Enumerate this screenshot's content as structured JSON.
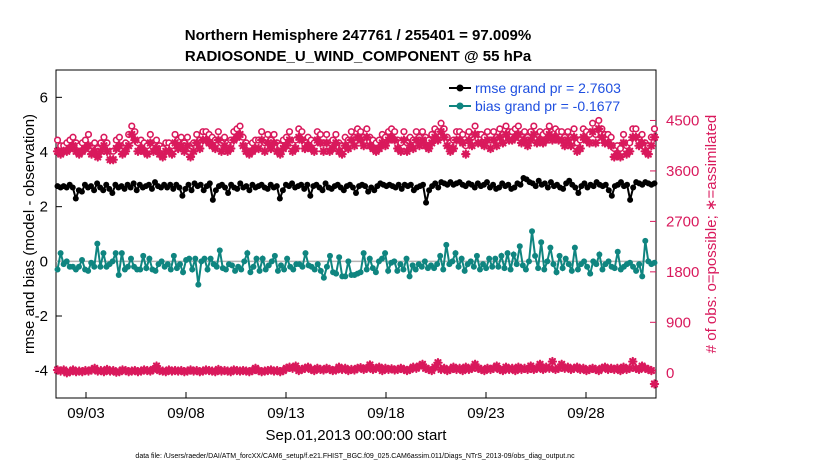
{
  "chart_data": {
    "type": "line",
    "title": "Northern Hemisphere 247761 / 255401 = 97.009%",
    "subtitle": "RADIOSONDE_U_WIND_COMPONENT @ 55 hPa",
    "xlabel": "Sep.01,2013 00:00:00 start",
    "ylabel": "rmse and bias (model - observation)",
    "ylabel_right": "# of obs: o=possible; ∗=assimilated",
    "footnote": "data file: /Users/raeder/DAI/ATM_forcXX/CAM6_setup/f.e21.FHIST_BGC.f09_025.CAM6assim.011/Diags_NTrS_2013-09/obs_diag_output.nc",
    "x_range_days": [
      0.5,
      30.5
    ],
    "ylim": [
      -5,
      7
    ],
    "ylim_right": [
      -450,
      5400
    ],
    "x_ticks": [
      2,
      7,
      12,
      17,
      22,
      27
    ],
    "x_tick_labels": [
      "09/03",
      "09/08",
      "09/13",
      "09/18",
      "09/23",
      "09/28"
    ],
    "y_ticks": [
      -4,
      -2,
      0,
      2,
      4,
      6
    ],
    "y_tick_labels": [
      "-4",
      "-2",
      "0",
      "2",
      "4",
      "6"
    ],
    "y_right_ticks": [
      0,
      900,
      1800,
      2700,
      3600,
      4500
    ],
    "y_right_tick_labels": [
      "0",
      "900",
      "1800",
      "2700",
      "3600",
      "4500"
    ],
    "zero_line": 0,
    "legend_placement": "top-right",
    "colors": {
      "rmse": "#000000",
      "bias": "#0f8580",
      "obs": "#d9195c",
      "zero": "#b3b3b3",
      "legend_text": "#1f4fe0"
    },
    "series": [
      {
        "name": "rmse grand pr = 2.7603",
        "axis": "left",
        "values": [
          2.75,
          2.7,
          2.75,
          2.7,
          2.8,
          2.7,
          2.3,
          2.6,
          2.55,
          2.8,
          2.7,
          2.75,
          2.6,
          2.85,
          2.7,
          2.6,
          2.8,
          2.65,
          2.5,
          2.8,
          2.7,
          2.75,
          2.65,
          2.8,
          2.7,
          2.85,
          2.6,
          2.8,
          2.7,
          2.75,
          2.8,
          2.65,
          2.9,
          2.75,
          2.7,
          2.8,
          2.7,
          2.8,
          2.65,
          2.8,
          2.7,
          2.4,
          2.65,
          2.8,
          2.6,
          2.85,
          2.75,
          2.8,
          2.6,
          2.75,
          2.85,
          2.25,
          2.6,
          2.75,
          2.8,
          2.7,
          2.5,
          2.8,
          2.7,
          2.65,
          2.85,
          2.7,
          2.75,
          2.6,
          2.8,
          2.7,
          2.75,
          2.8,
          2.7,
          2.65,
          2.8,
          2.7,
          2.75,
          2.3,
          2.6,
          2.8,
          2.75,
          2.85,
          2.7,
          2.75,
          2.8,
          2.65,
          2.8,
          2.4,
          2.75,
          2.8,
          2.7,
          2.6,
          2.85,
          2.7,
          2.65,
          2.75,
          2.8,
          2.7,
          2.6,
          2.75,
          2.8,
          2.7,
          2.5,
          2.75,
          2.8,
          2.75,
          2.55,
          2.7,
          2.6,
          2.75,
          2.85,
          2.8,
          2.75,
          2.8,
          2.75,
          2.7,
          2.8,
          2.65,
          2.8,
          2.75,
          2.8,
          2.6,
          2.7,
          2.75,
          2.8,
          2.15,
          2.6,
          2.75,
          2.85,
          2.7,
          2.9,
          2.85,
          2.8,
          2.9,
          2.8,
          2.85,
          2.9,
          2.8,
          2.75,
          2.85,
          2.8,
          2.7,
          2.85,
          2.75,
          2.8,
          2.9,
          2.7,
          2.8,
          2.65,
          2.7,
          2.85,
          2.75,
          2.8,
          2.65,
          2.7,
          2.85,
          2.8,
          3.05,
          3.0,
          2.9,
          2.85,
          2.75,
          2.95,
          2.8,
          2.85,
          2.7,
          2.9,
          2.75,
          2.8,
          2.7,
          2.65,
          2.85,
          2.95,
          2.8,
          2.7,
          2.5,
          2.75,
          2.85,
          2.7,
          2.8,
          2.75,
          2.9,
          2.8,
          2.75,
          2.8,
          2.6,
          2.4,
          2.75,
          2.8,
          2.9,
          2.75,
          2.8,
          2.25,
          2.7,
          2.9,
          2.85,
          2.8,
          2.9,
          2.85,
          2.8,
          2.85
        ]
      },
      {
        "name": "bias grand pr = -0.1677",
        "axis": "left",
        "values": [
          -0.3,
          0.3,
          -0.1,
          0.0,
          -0.2,
          -0.2,
          -0.3,
          -0.2,
          0.05,
          -0.3,
          -0.35,
          -0.05,
          -0.2,
          0.65,
          -0.2,
          0.3,
          -0.2,
          -0.1,
          0.0,
          0.3,
          -0.5,
          0.3,
          -0.3,
          -0.2,
          0.1,
          -0.2,
          -0.3,
          -0.3,
          0.2,
          -0.25,
          0.1,
          -0.3,
          -0.35,
          -0.1,
          0.0,
          -0.2,
          -0.1,
          -0.3,
          0.2,
          -0.25,
          -0.1,
          -0.4,
          0.05,
          0.1,
          -0.3,
          0.1,
          -0.85,
          0.0,
          0.1,
          -0.3,
          0.1,
          -0.1,
          -0.2,
          0.4,
          -0.25,
          -0.3,
          -0.1,
          -0.15,
          -0.35,
          -0.2,
          -0.3,
          0.0,
          0.3,
          -0.4,
          -0.2,
          0.1,
          -0.35,
          0.1,
          -0.3,
          -0.15,
          0.0,
          0.2,
          -0.35,
          -0.15,
          -0.3,
          0.1,
          -0.2,
          -0.3,
          -0.1,
          -0.1,
          -0.2,
          0.3,
          -0.15,
          -0.2,
          -0.3,
          -0.1,
          -0.35,
          -0.6,
          -0.2,
          0.2,
          -0.4,
          -0.45,
          0.15,
          -0.55,
          -0.55,
          0.0,
          -0.5,
          -0.5,
          -0.45,
          -0.4,
          0.3,
          -0.3,
          0.1,
          -0.25,
          -0.4,
          0.0,
          0.1,
          0.3,
          -0.35,
          -0.05,
          0.0,
          -0.35,
          -0.1,
          -0.3,
          0.1,
          -0.55,
          -0.15,
          -0.3,
          -0.1,
          -0.2,
          0.0,
          -0.25,
          -0.15,
          -0.25,
          -0.1,
          0.2,
          -0.3,
          0.6,
          -0.1,
          0.0,
          0.3,
          -0.2,
          0.1,
          -0.35,
          -0.1,
          0.0,
          -0.2,
          0.2,
          -0.3,
          -0.1,
          -0.25,
          0.1,
          -0.2,
          0.1,
          -0.2,
          0.2,
          -0.25,
          0.3,
          -0.3,
          0.25,
          -0.1,
          0.55,
          -0.15,
          -0.3,
          0.0,
          1.1,
          0.2,
          -0.25,
          0.7,
          -0.3,
          0.0,
          0.5,
          -0.1,
          -0.4,
          0.2,
          -0.25,
          0.1,
          -0.1,
          -0.35,
          0.5,
          -0.3,
          -0.1,
          0.0,
          -0.2,
          -0.45,
          0.0,
          -0.1,
          0.25,
          -0.3,
          -0.1,
          0.0,
          -0.2,
          -0.25,
          0.35,
          -0.3,
          -0.2,
          -0.1,
          -0.05,
          -0.2,
          -0.35,
          -0.1,
          -0.55,
          0.75,
          0.0,
          -0.1,
          -0.05
        ]
      },
      {
        "name": "possible obs",
        "axis": "right",
        "marker": "o",
        "values": [
          4150,
          4050,
          4050,
          4100,
          4150,
          4200,
          4100,
          4050,
          4100,
          4150,
          4250,
          4050,
          4100,
          4000,
          4100,
          4200,
          4100,
          3950,
          3950,
          4150,
          4200,
          4050,
          4100,
          4250,
          4400,
          4300,
          4100,
          4150,
          4100,
          4050,
          4250,
          4100,
          4150,
          4050,
          4000,
          4100,
          4100,
          4050,
          4250,
          4150,
          4200,
          4100,
          4200,
          4000,
          4100,
          4250,
          4150,
          4300,
          4300,
          4250,
          4200,
          4150,
          4300,
          4100,
          4200,
          4100,
          4150,
          4300,
          4350,
          4400,
          4200,
          4100,
          4050,
          4100,
          4150,
          4150,
          4300,
          4100,
          4250,
          4150,
          4250,
          4100,
          4050,
          4150,
          4200,
          4300,
          4100,
          4150,
          4350,
          4300,
          4150,
          4200,
          4150,
          4100,
          4300,
          4250,
          4100,
          4250,
          4100,
          4150,
          4250,
          4100,
          4050,
          4200,
          4150,
          4300,
          4200,
          4350,
          4300,
          4200,
          4350,
          4200,
          4150,
          4100,
          4150,
          4250,
          4200,
          4300,
          4350,
          4300,
          4150,
          4100,
          4300,
          4100,
          4200,
          4150,
          4300,
          4200,
          4300,
          4200,
          4150,
          4250,
          4350,
          4300,
          4450,
          4350,
          4200,
          4100,
          4150,
          4300,
          4300,
          4250,
          4050,
          4300,
          4200,
          4400,
          4250,
          4250,
          4200,
          4300,
          4150,
          4300,
          4200,
          4350,
          4250,
          4400,
          4300,
          4300,
          4350,
          4400,
          4250,
          4300,
          4200,
          4300,
          4400,
          4250,
          4300,
          4250,
          4300,
          4400,
          4300,
          4350,
          4300,
          4300,
          4200,
          4300,
          4200,
          4350,
          4100,
          4150,
          4350,
          4300,
          4250,
          4450,
          4250,
          4500,
          4350,
          4250,
          4250,
          4200,
          4000,
          4050,
          4000,
          4250,
          4050,
          4100,
          4350,
          4350,
          4200,
          4250,
          4100,
          4050,
          4200,
          4350
        ]
      },
      {
        "name": "assimilated obs",
        "axis": "right",
        "marker": "*",
        "values": [
          3950,
          3900,
          3950,
          3950,
          4000,
          4050,
          3950,
          3900,
          3950,
          4000,
          4050,
          3900,
          3950,
          3850,
          3950,
          4050,
          3950,
          3800,
          3800,
          4000,
          4050,
          3900,
          3950,
          4050,
          4250,
          4150,
          3950,
          4000,
          3950,
          3900,
          4100,
          3950,
          4000,
          3900,
          3850,
          3950,
          3950,
          3900,
          4100,
          4000,
          4050,
          3950,
          4050,
          3850,
          3950,
          4100,
          4000,
          4150,
          4150,
          4100,
          4050,
          4000,
          4150,
          3950,
          4050,
          3950,
          4000,
          4150,
          4200,
          4250,
          4050,
          3950,
          3900,
          3950,
          4000,
          4000,
          4150,
          3950,
          4100,
          4000,
          4100,
          3950,
          3900,
          4000,
          4050,
          4150,
          3950,
          4000,
          4200,
          4150,
          4000,
          4050,
          4000,
          3950,
          4150,
          4100,
          3950,
          4100,
          3950,
          4000,
          4100,
          3950,
          3900,
          4050,
          4000,
          4150,
          4050,
          4200,
          4150,
          4050,
          4200,
          4050,
          4000,
          3950,
          4000,
          4100,
          4050,
          4150,
          4200,
          4150,
          4000,
          3950,
          4150,
          3950,
          4050,
          4000,
          4150,
          4050,
          4150,
          4050,
          4000,
          4100,
          4200,
          4150,
          4300,
          4200,
          4050,
          3950,
          4000,
          4150,
          4150,
          4100,
          3900,
          4150,
          4050,
          4250,
          4100,
          4100,
          4050,
          4150,
          4000,
          4150,
          4050,
          4200,
          4100,
          4250,
          4150,
          4150,
          4200,
          4250,
          4100,
          4150,
          4050,
          4150,
          4250,
          4100,
          4150,
          4100,
          4150,
          4250,
          4150,
          4200,
          4150,
          4150,
          4050,
          4150,
          4050,
          4200,
          3950,
          4000,
          4200,
          4150,
          4100,
          4300,
          4100,
          4350,
          4200,
          4100,
          4100,
          4050,
          3850,
          3900,
          3850,
          4100,
          3900,
          3950,
          4200,
          4200,
          4050,
          4100,
          3950,
          3900,
          4050,
          4200
        ]
      },
      {
        "name": "assimilated obs (lower)",
        "axis": "right",
        "marker": "*",
        "values": [
          50,
          30,
          50,
          0,
          20,
          50,
          20,
          30,
          20,
          40,
          30,
          50,
          80,
          30,
          40,
          20,
          60,
          30,
          40,
          10,
          20,
          50,
          40,
          20,
          30,
          40,
          20,
          30,
          50,
          40,
          30,
          60,
          120,
          40,
          30,
          20,
          50,
          30,
          40,
          30,
          40,
          20,
          30,
          50,
          30,
          40,
          20,
          30,
          50,
          40,
          30,
          20,
          60,
          30,
          40,
          30,
          20,
          50,
          40,
          30,
          40,
          30,
          20,
          40,
          80,
          40,
          20,
          30,
          40,
          50,
          30,
          40,
          20,
          40,
          80,
          100,
          80,
          120,
          40,
          60,
          80,
          100,
          60,
          40,
          80,
          60,
          50,
          80,
          60,
          40,
          50,
          100,
          60,
          80,
          40,
          60,
          50,
          80,
          90,
          60,
          80,
          140,
          60,
          80,
          100,
          40,
          80,
          60,
          70,
          50,
          60,
          80,
          60,
          40,
          60,
          100,
          80,
          120,
          150,
          80,
          60,
          40,
          100,
          180,
          60,
          80,
          40,
          60,
          100,
          60,
          80,
          40,
          100,
          60,
          80,
          150,
          80,
          60,
          40,
          80,
          60,
          80,
          120,
          60,
          40,
          100,
          60,
          80,
          40,
          100,
          60,
          80,
          60,
          120,
          60,
          80,
          150,
          60,
          100,
          80,
          200,
          60,
          80,
          150,
          80,
          100,
          60,
          80,
          100,
          60,
          80,
          40,
          60,
          80,
          60,
          40,
          80,
          100,
          60,
          80,
          60,
          80,
          40,
          100,
          60,
          80,
          200,
          80,
          60,
          120,
          80,
          60,
          40,
          -200
        ]
      }
    ]
  }
}
